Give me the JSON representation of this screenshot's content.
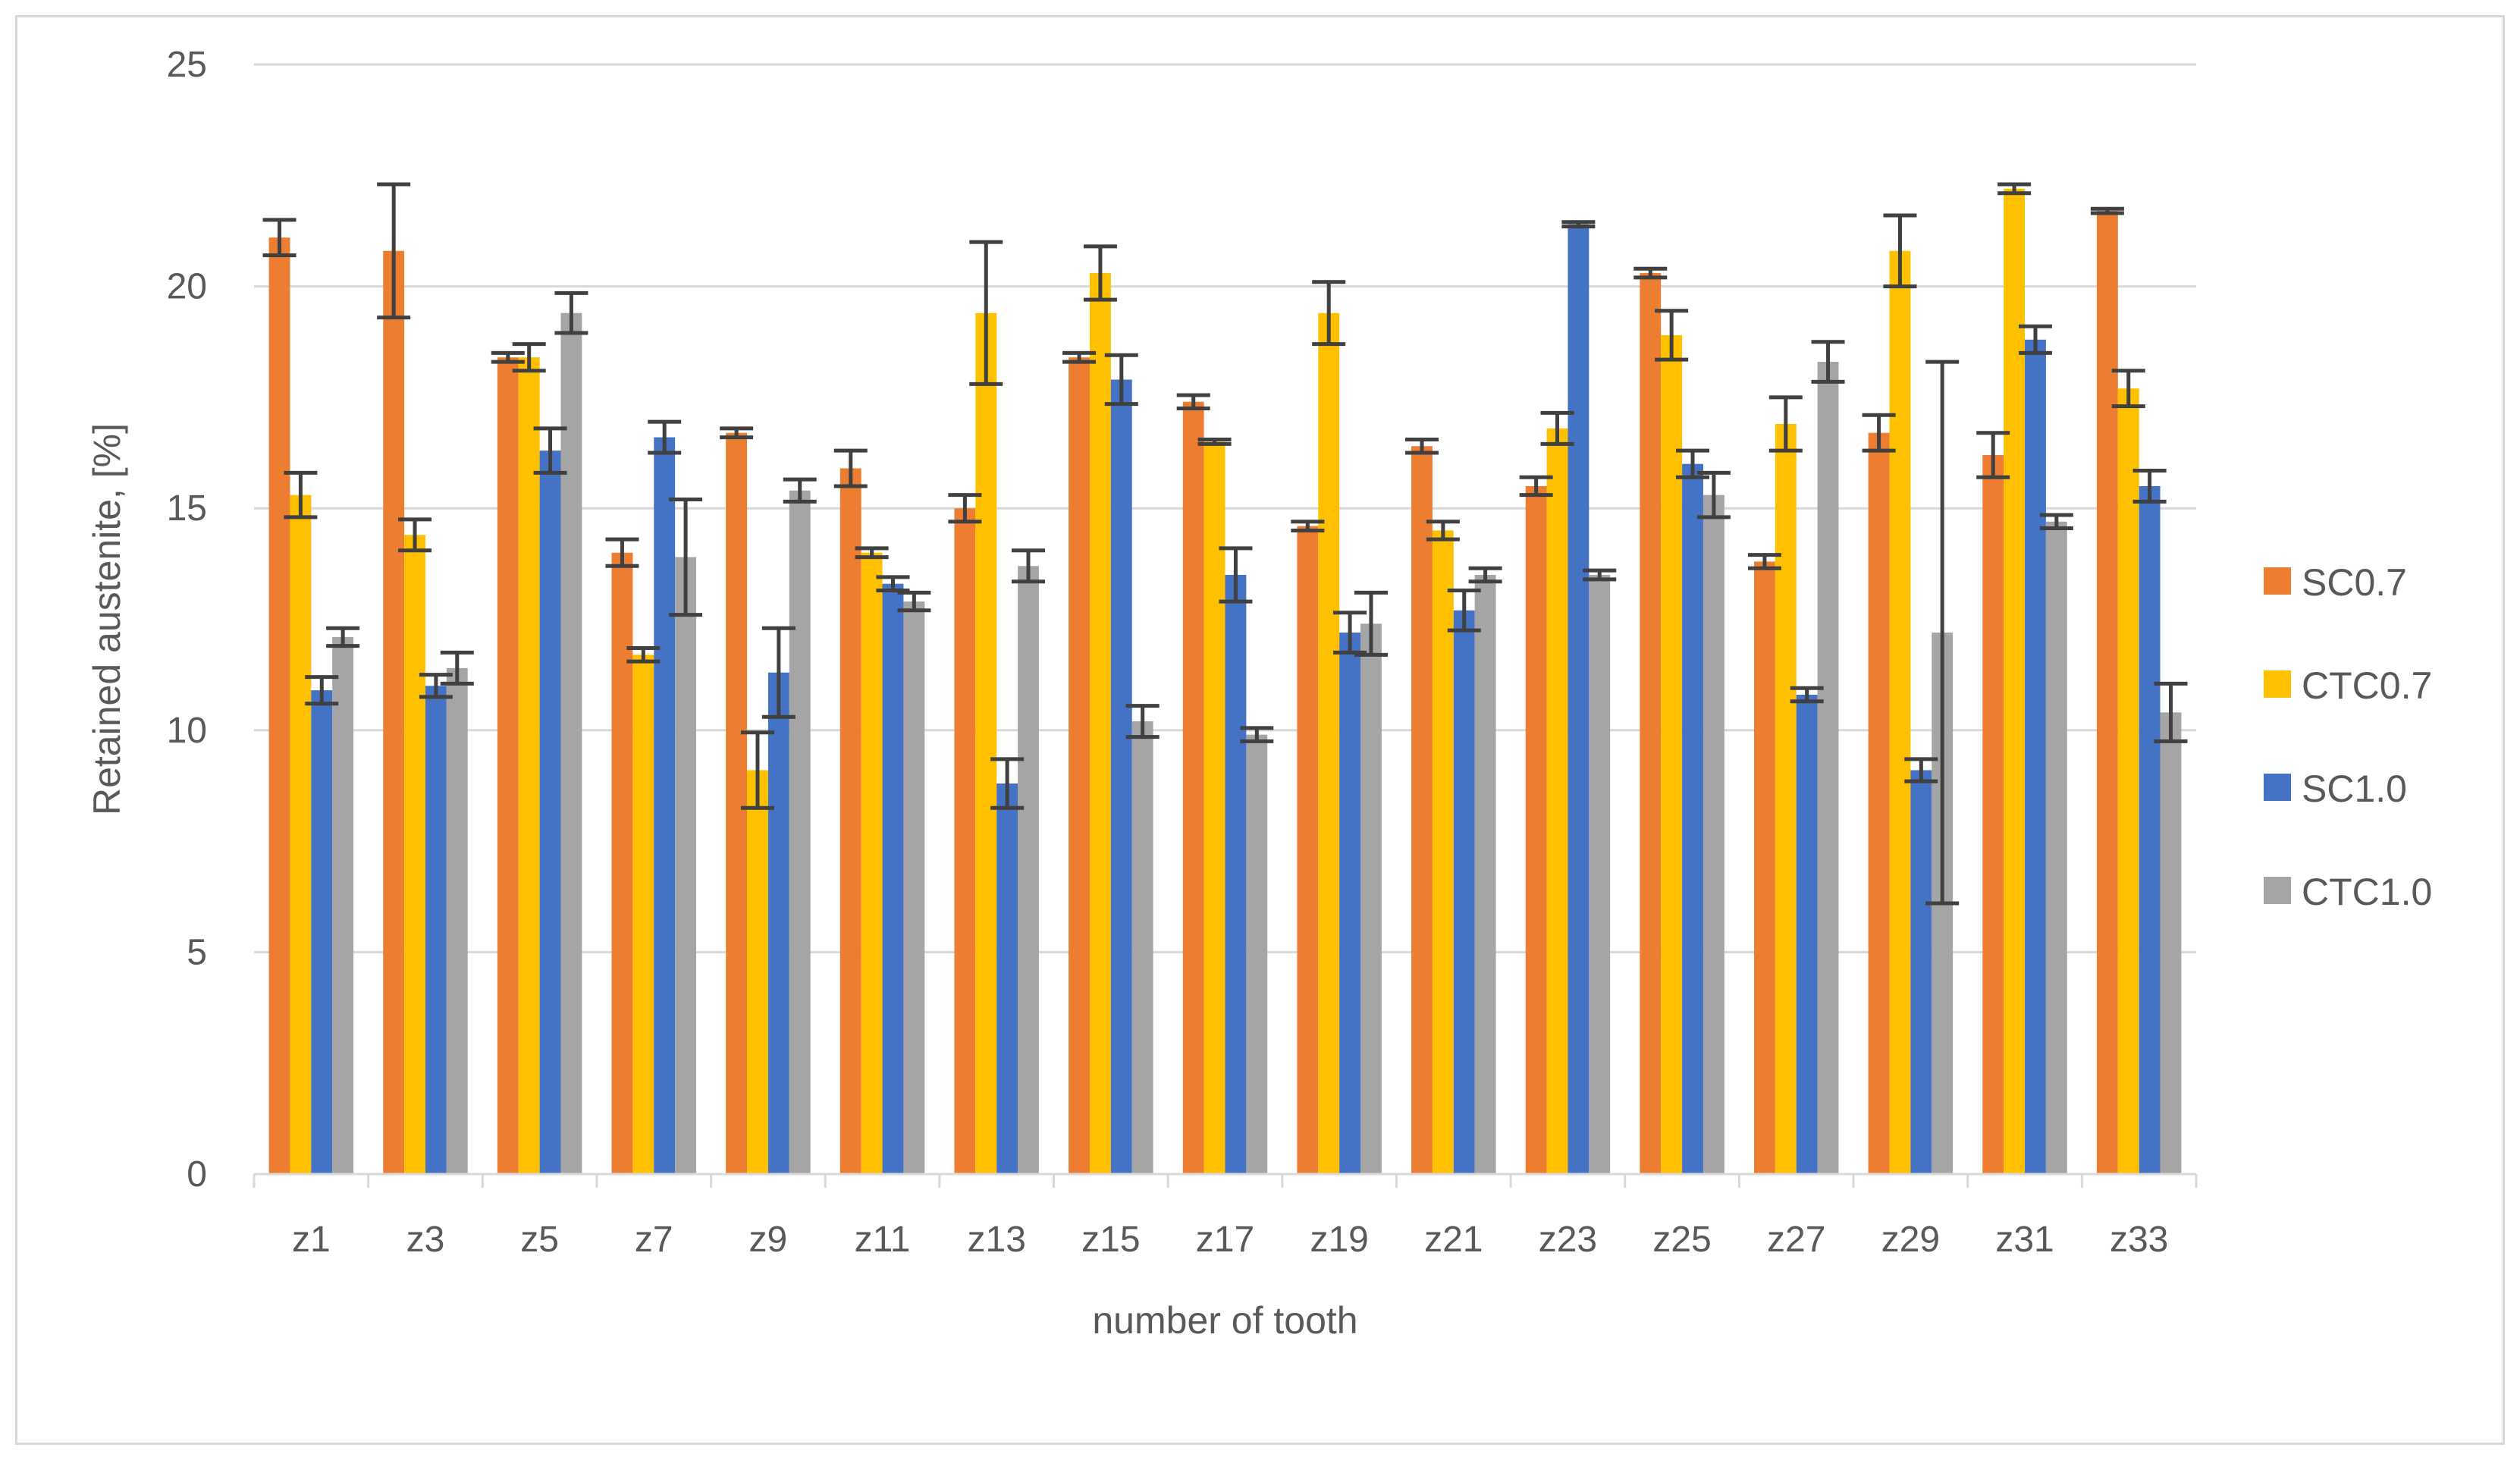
{
  "chart_data": {
    "type": "bar",
    "title": "",
    "xlabel": "number of tooth",
    "ylabel": "Retained austenite, [%]",
    "ylim": [
      0,
      25
    ],
    "yticks": [
      0,
      5,
      10,
      15,
      20,
      25
    ],
    "grid": true,
    "legend_position": "right",
    "categories": [
      "z1",
      "z3",
      "z5",
      "z7",
      "z9",
      "z11",
      "z13",
      "z15",
      "z17",
      "z19",
      "z21",
      "z23",
      "z25",
      "z27",
      "z29",
      "z31",
      "z33"
    ],
    "series": [
      {
        "name": "SC0.7",
        "color": "#ed7d31",
        "values": [
          21.1,
          20.8,
          18.4,
          14.0,
          16.7,
          15.9,
          15.0,
          18.4,
          17.4,
          14.6,
          16.4,
          15.5,
          20.3,
          13.8,
          16.7,
          16.2,
          21.7
        ],
        "errors": [
          0.4,
          1.5,
          0.1,
          0.3,
          0.1,
          0.4,
          0.3,
          0.1,
          0.15,
          0.1,
          0.15,
          0.2,
          0.1,
          0.15,
          0.4,
          0.5,
          0.05
        ]
      },
      {
        "name": "CTC0.7",
        "color": "#ffc000",
        "values": [
          15.3,
          14.4,
          18.4,
          11.7,
          9.1,
          14.0,
          19.4,
          20.3,
          16.5,
          19.4,
          14.5,
          16.8,
          18.9,
          16.9,
          20.8,
          22.2,
          17.7
        ],
        "errors": [
          0.5,
          0.35,
          0.3,
          0.15,
          0.85,
          0.1,
          1.6,
          0.6,
          0.05,
          0.7,
          0.2,
          0.35,
          0.55,
          0.6,
          0.8,
          0.1,
          0.4
        ]
      },
      {
        "name": "SC1.0",
        "color": "#4472c4",
        "values": [
          10.9,
          11.0,
          16.3,
          16.6,
          11.3,
          13.3,
          8.8,
          17.9,
          13.5,
          12.2,
          12.7,
          21.4,
          16.0,
          10.8,
          9.1,
          18.8,
          15.5
        ],
        "errors": [
          0.3,
          0.25,
          0.5,
          0.35,
          1.0,
          0.15,
          0.55,
          0.55,
          0.6,
          0.45,
          0.45,
          0.05,
          0.3,
          0.15,
          0.25,
          0.3,
          0.35
        ]
      },
      {
        "name": "CTC1.0",
        "color": "#a5a5a5",
        "values": [
          12.1,
          11.4,
          19.4,
          13.9,
          15.4,
          12.9,
          13.7,
          10.2,
          9.9,
          12.4,
          13.5,
          13.5,
          15.3,
          18.3,
          12.2,
          14.7,
          10.4
        ],
        "errors": [
          0.2,
          0.35,
          0.45,
          1.3,
          0.25,
          0.2,
          0.35,
          0.35,
          0.15,
          0.7,
          0.15,
          0.1,
          0.5,
          0.45,
          6.1,
          0.15,
          0.65
        ]
      }
    ]
  }
}
